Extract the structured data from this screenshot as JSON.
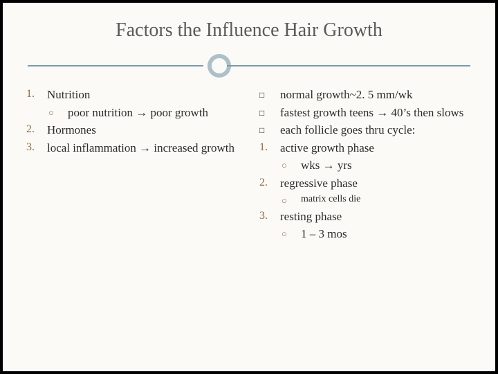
{
  "colors": {
    "slide_bg": "#fbfaf6",
    "outer_bg": "#000000",
    "title_color": "#5a5a5a",
    "rule_color": "#7a98a8",
    "ring_color": "#adc0ca",
    "marker_color": "#8b6b46",
    "text_color": "#2b2b2b"
  },
  "typography": {
    "family": "Georgia, serif",
    "title_size_pt": 21,
    "body_size_pt": 13,
    "small_size_pt": 11
  },
  "slide": {
    "title": "Factors the Influence Hair Growth"
  },
  "left": {
    "items": [
      {
        "marker": "1.",
        "text": "Nutrition"
      },
      {
        "marker": "circle",
        "text": "poor nutrition → poor growth",
        "indent": 1
      },
      {
        "marker": "2.",
        "text": "Hormones"
      },
      {
        "marker": "3.",
        "text": "local inflammation → increased growth"
      }
    ]
  },
  "right": {
    "items": [
      {
        "marker": "square",
        "text": "normal growth~2. 5 mm/wk"
      },
      {
        "marker": "square",
        "text": "fastest growth teens → 40’s then slows"
      },
      {
        "marker": "square",
        "text": "each follicle goes thru cycle:"
      },
      {
        "marker": "1.",
        "text": "active growth phase"
      },
      {
        "marker": "circle",
        "text": "wks → yrs",
        "indent": 1
      },
      {
        "marker": "2.",
        "text": "regressive phase"
      },
      {
        "marker": "circle",
        "text": "matrix cells die",
        "indent": 1,
        "small": true
      },
      {
        "marker": "3.",
        "text": "resting phase"
      },
      {
        "marker": "circle",
        "text": "1 – 3 mos",
        "indent": 1
      }
    ]
  }
}
